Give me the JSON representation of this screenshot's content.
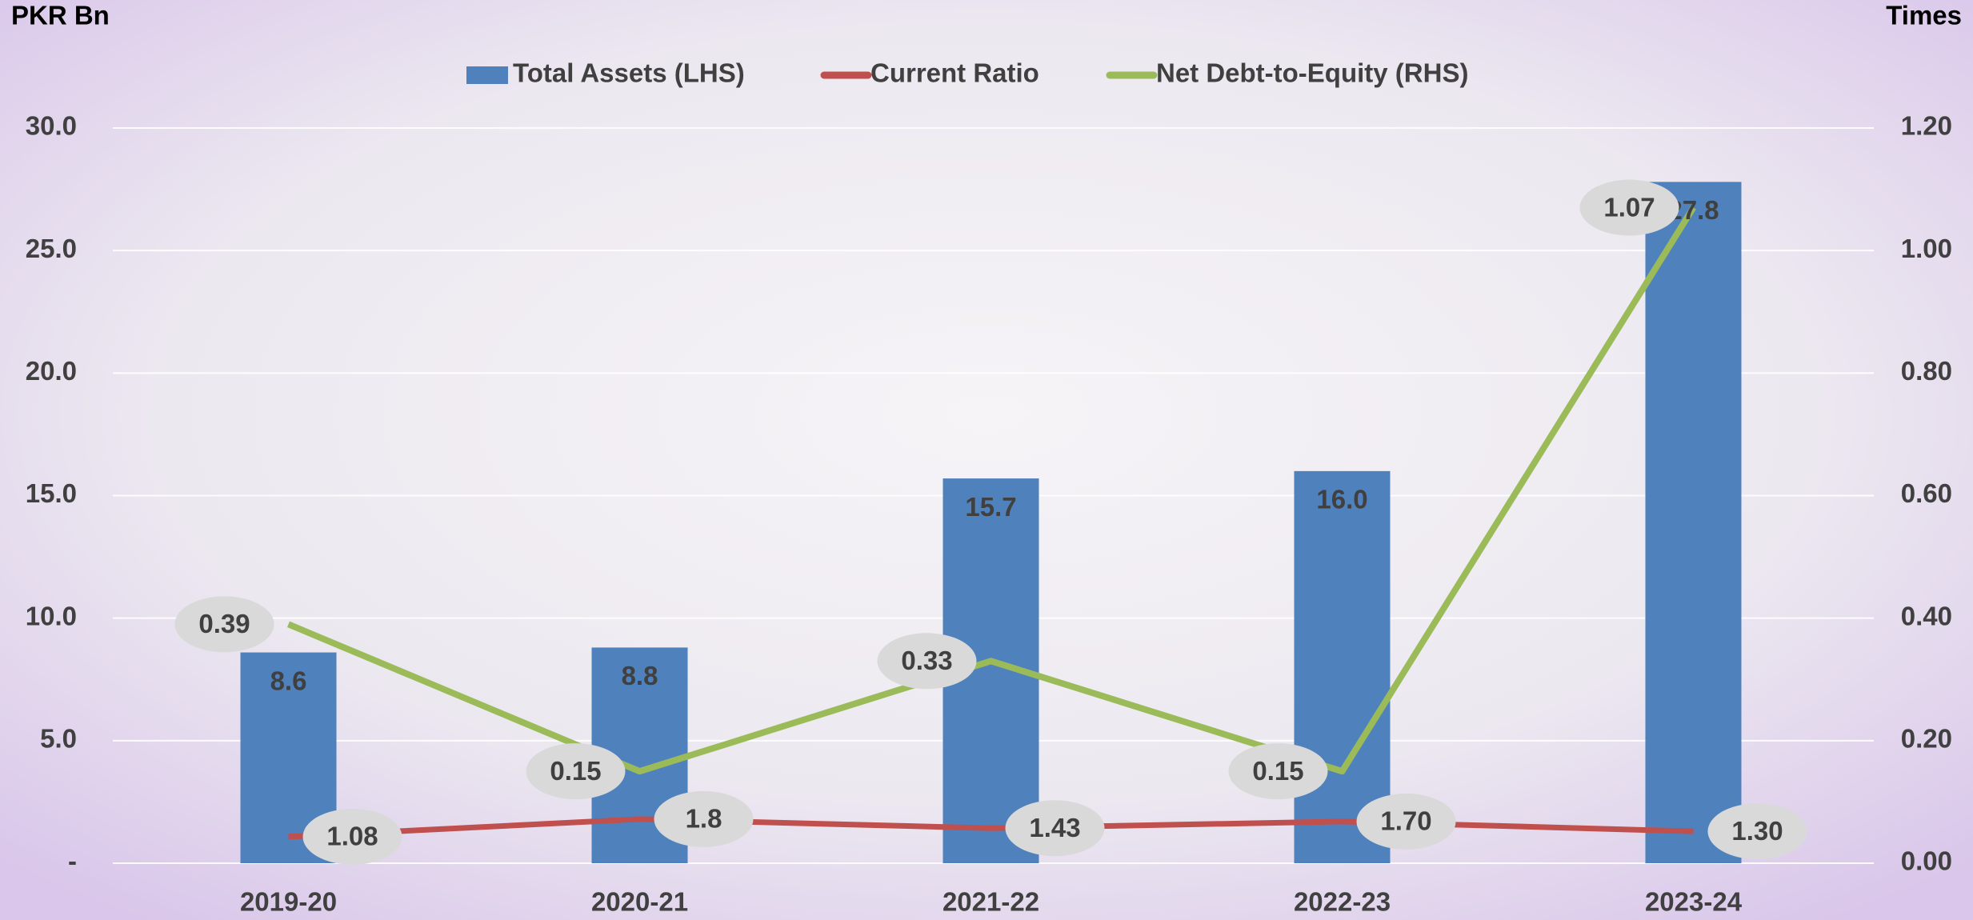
{
  "chart_data": {
    "type": "combo",
    "y_label": "PKR Bn",
    "y2_label": "Times",
    "categories": [
      "2019-20",
      "2020-21",
      "2021-22",
      "2022-23",
      "2023-24"
    ],
    "series": [
      {
        "name": "Total Assets (LHS)",
        "type": "bar",
        "color": "#4f81bd",
        "values": [
          8.6,
          8.8,
          15.7,
          16.0,
          27.8
        ],
        "value_labels": [
          "8.6",
          "8.8",
          "15.7",
          "16.0",
          "27.8"
        ]
      },
      {
        "name": "Current Ratio",
        "type": "line",
        "color": "#c0504d",
        "values": [
          1.08,
          1.8,
          1.43,
          1.7,
          1.3
        ],
        "value_labels": [
          "1.08",
          "1.8",
          "1.43",
          "1.70",
          "1.30"
        ]
      },
      {
        "name": "Net Debt-to-Equity (RHS)",
        "type": "line",
        "axis": "y2",
        "color": "#9bbb59",
        "values": [
          0.39,
          0.15,
          0.33,
          0.15,
          1.07
        ]
      }
    ],
    "ylim": [
      0,
      30
    ],
    "yticks": [
      {
        "value": 0,
        "label": "-"
      },
      {
        "value": 5,
        "label": "5.0"
      },
      {
        "value": 10,
        "label": "10.0"
      },
      {
        "value": 15,
        "label": "15.0"
      },
      {
        "value": 20,
        "label": "20.0"
      },
      {
        "value": 25,
        "label": "25.0"
      },
      {
        "value": 30,
        "label": "30.0"
      }
    ],
    "y2lim": [
      0,
      1.2
    ],
    "y2ticks": [
      {
        "value": 0,
        "label": "0.00"
      },
      {
        "value": 0.2,
        "label": "0.20"
      },
      {
        "value": 0.4,
        "label": "0.40"
      },
      {
        "value": 0.6,
        "label": "0.60"
      },
      {
        "value": 0.8,
        "label": "0.80"
      },
      {
        "value": 1,
        "label": "1.00"
      },
      {
        "value": 1.2,
        "label": "1.20"
      }
    ],
    "grid": true,
    "legend": "top"
  }
}
